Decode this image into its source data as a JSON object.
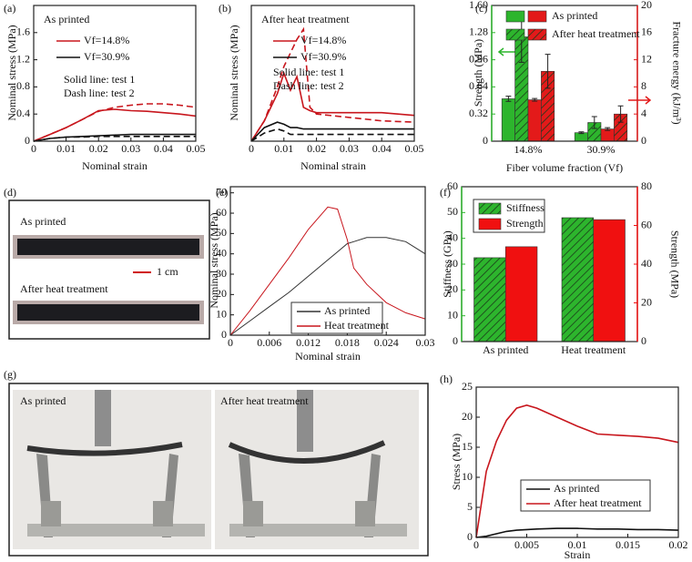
{
  "chart_data": [
    {
      "type": "line",
      "label": "(a)",
      "title": "As printed",
      "notes": [
        "Solid line: test 1",
        "Dash line: test 2"
      ],
      "xlabel": "Nominal strain",
      "ylabel": "Nominal stress (MPa)",
      "x": [
        0,
        0.005,
        0.01,
        0.015,
        0.02,
        0.025,
        0.03,
        0.035,
        0.04,
        0.045,
        0.05
      ],
      "series": [
        {
          "name": "Vf=14.8%",
          "color": "#c8161d",
          "values": [
            0,
            0.1,
            0.2,
            0.32,
            0.45,
            0.47,
            0.45,
            0.44,
            0.42,
            0.4,
            0.37
          ],
          "dash_values": [
            0,
            0.1,
            0.2,
            0.32,
            0.44,
            0.5,
            0.53,
            0.55,
            0.55,
            0.53,
            0.5
          ]
        },
        {
          "name": "Vf=30.9%",
          "color": "#111111",
          "values": [
            0,
            0.04,
            0.06,
            0.07,
            0.08,
            0.09,
            0.1,
            0.1,
            0.1,
            0.1,
            0.1
          ],
          "dash_values": [
            0,
            0.04,
            0.06,
            0.06,
            0.07,
            0.07,
            0.07,
            0.07,
            0.07,
            0.07,
            0.07
          ]
        }
      ],
      "xlim": [
        0,
        0.05
      ],
      "xticks": [
        0,
        0.01,
        0.02,
        0.03,
        0.04,
        0.05
      ],
      "ylim": [
        0,
        2
      ],
      "yticks": [
        0,
        0.4,
        0.8,
        1.2,
        1.6
      ]
    },
    {
      "type": "line",
      "label": "(b)",
      "title": "After heat treatment",
      "notes": [
        "Solid line: test 1",
        "Dash line: test 2"
      ],
      "xlabel": "Nominal strain",
      "ylabel": "Nominal stress (MPa)",
      "x": [
        0,
        0.004,
        0.008,
        0.01,
        0.012,
        0.014,
        0.016,
        0.018,
        0.02,
        0.03,
        0.04,
        0.05
      ],
      "series": [
        {
          "name": "Vf=14.8%",
          "color": "#c8161d",
          "values": [
            0,
            0.3,
            0.7,
            1.0,
            0.75,
            0.95,
            0.5,
            0.45,
            0.42,
            0.42,
            0.42,
            0.38
          ],
          "dash_values": [
            0,
            0.3,
            0.8,
            1.1,
            1.3,
            1.5,
            1.65,
            0.5,
            0.4,
            0.35,
            0.3,
            0.28
          ]
        },
        {
          "name": "Vf=30.9%",
          "color": "#111111",
          "values": [
            0,
            0.2,
            0.28,
            0.25,
            0.2,
            0.2,
            0.18,
            0.18,
            0.18,
            0.18,
            0.18,
            0.18
          ],
          "dash_values": [
            0,
            0.12,
            0.18,
            0.15,
            0.1,
            0.1,
            0.1,
            0.1,
            0.1,
            0.1,
            0.1,
            0.1
          ]
        }
      ],
      "xlim": [
        0,
        0.05
      ],
      "xticks": [
        0,
        0.01,
        0.02,
        0.03,
        0.04,
        0.05
      ],
      "ylim": [
        0,
        2
      ]
    },
    {
      "type": "bar",
      "label": "(c)",
      "xlabel": "Fiber volume fraction (Vf)",
      "ylabel": "Strength (MPa)",
      "y2label": "Fracture energy (kJ/m³)",
      "categories": [
        "14.8%",
        "30.9%"
      ],
      "series": [
        {
          "name": "As printed",
          "color": "#2db52d",
          "pattern": "solid",
          "values": [
            0.5,
            0.1
          ],
          "errors": [
            0.03,
            0.01
          ]
        },
        {
          "name": "After heat treatment",
          "color": "#2db52d",
          "pattern": "hatch",
          "values": [
            1.23,
            0.22
          ],
          "errors": [
            0.3,
            0.07
          ]
        },
        {
          "color": "#e31a1a",
          "pattern": "solid",
          "axis": "y2",
          "values": [
            6.1,
            1.8
          ],
          "errors": [
            0.2,
            0.2
          ]
        },
        {
          "color": "#e31a1a",
          "pattern": "hatch",
          "axis": "y2",
          "values": [
            10.3,
            4.0
          ],
          "errors": [
            2.5,
            1.2
          ]
        }
      ],
      "ylim": [
        0,
        1.6
      ],
      "yticks": [
        0,
        0.32,
        0.64,
        0.96,
        1.28,
        {
          "value": 1.6,
          "label": "1.60"
        }
      ],
      "y2lim": [
        0,
        20
      ],
      "y2ticks": [
        0,
        4,
        8,
        12,
        16,
        20
      ]
    },
    {
      "type": "line",
      "label": "(e)",
      "xlabel": "Nominal strain",
      "ylabel": "Nominal stress (MPa)",
      "x": [
        0,
        0.003,
        0.006,
        0.009,
        0.012,
        0.015,
        0.0165,
        0.018,
        0.019,
        0.021,
        0.024,
        0.027,
        0.03
      ],
      "series": [
        {
          "name": "As printed",
          "color": "#333333",
          "values": [
            0,
            7,
            14,
            21,
            29,
            37,
            41,
            45,
            46,
            48,
            48,
            46,
            40
          ]
        },
        {
          "name": "Heat treatment",
          "color": "#c8161d",
          "values": [
            0,
            12,
            25,
            38,
            52,
            63,
            62,
            47,
            33,
            25,
            16,
            11,
            8
          ]
        }
      ],
      "xlim": [
        0,
        0.03
      ],
      "xticks": [
        0,
        0.006,
        0.012,
        0.018,
        0.024,
        0.03
      ],
      "ylim": [
        0,
        73
      ],
      "yticks": [
        0,
        10,
        20,
        30,
        40,
        50,
        60,
        70
      ]
    },
    {
      "type": "bar",
      "label": "(f)",
      "ylabel": "Stiffness (GPa)",
      "y2label": "Strength (MPa)",
      "categories": [
        "As printed",
        "Heat treatment"
      ],
      "series": [
        {
          "name": "Stiffness",
          "color": "#2db52d",
          "pattern": "hatch",
          "values": [
            32.5,
            48
          ]
        },
        {
          "name": "Strength",
          "color": "#f01010",
          "pattern": "solid",
          "axis": "y2",
          "values": [
            49,
            63
          ]
        }
      ],
      "ylim": [
        0,
        60
      ],
      "yticks": [
        0,
        10,
        20,
        30,
        40,
        50,
        60
      ],
      "y2lim": [
        0,
        80
      ],
      "y2ticks": [
        0,
        20,
        40,
        60,
        80
      ]
    },
    {
      "type": "line",
      "label": "(h)",
      "xlabel": "Strain",
      "ylabel": "Stress (MPa)",
      "x": [
        0,
        0.001,
        0.002,
        0.003,
        0.004,
        0.005,
        0.006,
        0.008,
        0.01,
        0.012,
        0.014,
        0.016,
        0.018,
        0.02
      ],
      "series": [
        {
          "name": "As printed",
          "color": "#111111",
          "values": [
            0,
            0.2,
            0.6,
            1,
            1.2,
            1.3,
            1.4,
            1.5,
            1.5,
            1.4,
            1.4,
            1.3,
            1.3,
            1.2
          ]
        },
        {
          "name": "After heat treatment",
          "color": "#c8161d",
          "values": [
            0,
            11,
            16,
            19.5,
            21.5,
            22,
            21.5,
            20,
            18.5,
            17.2,
            17,
            16.8,
            16.5,
            15.8
          ]
        }
      ],
      "xlim": [
        0,
        0.02
      ],
      "xticks": [
        0,
        0.005,
        0.01,
        0.015,
        0.02
      ],
      "ylim": [
        0,
        25
      ],
      "yticks": [
        0,
        5,
        10,
        15,
        20,
        25
      ]
    }
  ],
  "photos": {
    "d": {
      "label": "(d)",
      "texts": [
        "As printed",
        "1 cm",
        "After heat treatment"
      ]
    },
    "g": {
      "label": "(g)",
      "texts": [
        "As printed",
        "After heat treatment"
      ]
    }
  }
}
